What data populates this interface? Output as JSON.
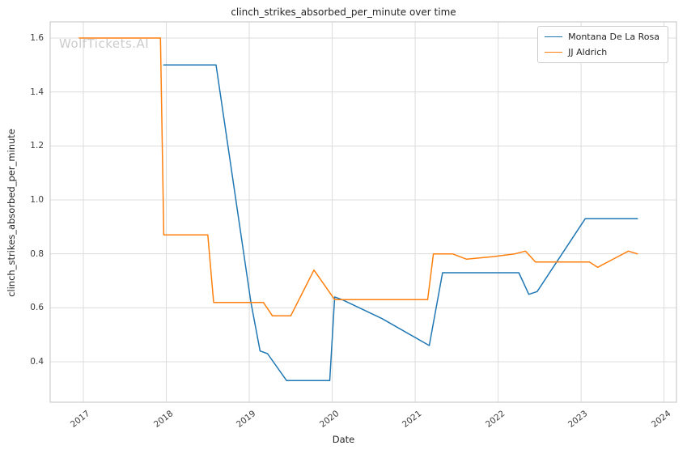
{
  "watermark": "WolfTickets.AI",
  "chart_data": {
    "type": "line",
    "title": "clinch_strikes_absorbed_per_minute over time",
    "xlabel": "Date",
    "ylabel": "clinch_strikes_absorbed_per_minute",
    "xlim": [
      2016.6,
      2024.15
    ],
    "ylim": [
      0.25,
      1.66
    ],
    "xticks": [
      2017,
      2018,
      2019,
      2020,
      2021,
      2022,
      2023,
      2024
    ],
    "yticks": [
      0.4,
      0.6,
      0.8,
      1.0,
      1.2,
      1.4,
      1.6
    ],
    "grid": true,
    "legend_position": "upper right",
    "colors": {
      "grid": "#dcdcdc",
      "axis_border": "#cccccc",
      "series_blue": "#1f77b4",
      "series_orange": "#ff7f0e"
    },
    "series": [
      {
        "name": "Montana De La Rosa",
        "color": "#1f77b4",
        "x": [
          2017.97,
          2018.6,
          2019.02,
          2019.13,
          2019.22,
          2019.45,
          2019.97,
          2020.03,
          2020.12,
          2020.6,
          2021.17,
          2021.33,
          2021.6,
          2022.25,
          2022.37,
          2022.47,
          2023.05,
          2023.3,
          2023.68
        ],
        "y": [
          1.5,
          1.5,
          0.62,
          0.44,
          0.43,
          0.33,
          0.33,
          0.64,
          0.63,
          0.56,
          0.46,
          0.73,
          0.73,
          0.73,
          0.65,
          0.66,
          0.93,
          0.93,
          0.93
        ]
      },
      {
        "name": "JJ Aldrich",
        "color": "#ff7f0e",
        "x": [
          2016.95,
          2017.93,
          2017.97,
          2018.5,
          2018.57,
          2019.17,
          2019.28,
          2019.5,
          2019.78,
          2020.03,
          2021.15,
          2021.22,
          2021.45,
          2021.62,
          2021.95,
          2022.2,
          2022.33,
          2022.45,
          2023.1,
          2023.2,
          2023.57,
          2023.68
        ],
        "y": [
          1.6,
          1.6,
          0.87,
          0.87,
          0.62,
          0.62,
          0.57,
          0.57,
          0.74,
          0.63,
          0.63,
          0.8,
          0.8,
          0.78,
          0.79,
          0.8,
          0.81,
          0.77,
          0.77,
          0.75,
          0.81,
          0.8
        ]
      }
    ]
  }
}
